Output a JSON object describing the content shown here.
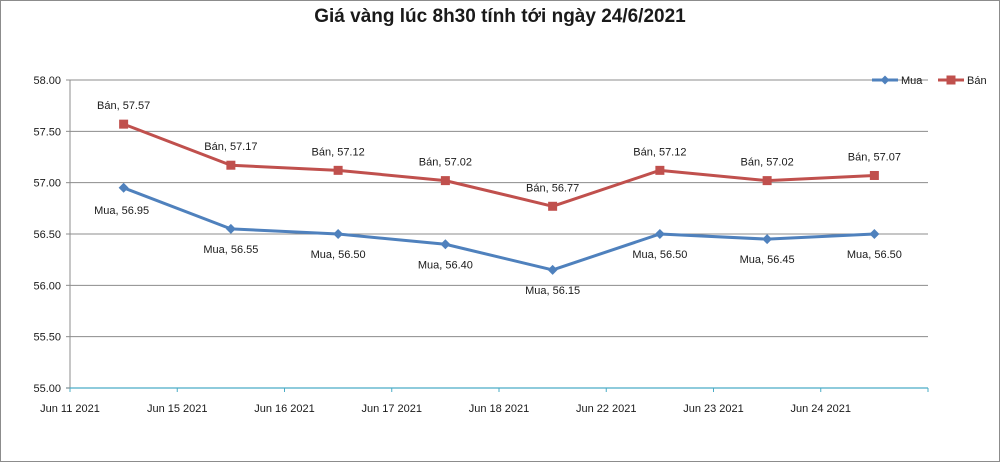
{
  "chart_data": {
    "type": "line",
    "title": "Giá vàng lúc 8h30 tính tới ngày 24/6/2021",
    "categories": [
      "Jun 11 2021",
      "Jun 15 2021",
      "Jun 16 2021",
      "Jun 17 2021",
      "Jun 18 2021",
      "Jun 22 2021",
      "Jun 23 2021",
      "Jun 24 2021"
    ],
    "series": [
      {
        "name": "Mua",
        "color": "#4f81bd",
        "marker": "diamond",
        "values": [
          56.95,
          56.55,
          56.5,
          56.4,
          56.15,
          56.5,
          56.45,
          56.5
        ],
        "labels": [
          "Mua, 56.95",
          "Mua, 56.55",
          "Mua, 56.50",
          "Mua, 56.40",
          "Mua, 56.15",
          "Mua, 56.50",
          "Mua, 56.45",
          "Mua, 56.50"
        ]
      },
      {
        "name": "Bán",
        "color": "#c0504d",
        "marker": "square",
        "values": [
          57.57,
          57.17,
          57.12,
          57.02,
          56.77,
          57.12,
          57.02,
          57.07
        ],
        "labels": [
          "Bán, 57.57",
          "Bán, 57.17",
          "Bán, 57.12",
          "Bán, 57.02",
          "Bán, 56.77",
          "Bán, 57.12",
          "Bán, 57.02",
          "Bán, 57.07"
        ]
      }
    ],
    "ylim": [
      55.0,
      58.0
    ],
    "yticks": [
      "55.00",
      "55.50",
      "56.00",
      "56.50",
      "57.00",
      "57.50",
      "58.00"
    ],
    "grid": "horizontal",
    "legend": "top-right",
    "xlabel": "",
    "ylabel": ""
  }
}
